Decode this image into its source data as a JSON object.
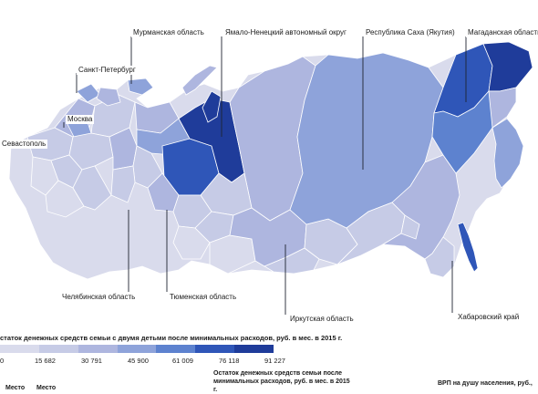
{
  "colors": {
    "ocean": "#ffffff",
    "base": "#d9dbec",
    "c1": "#c6cbe6",
    "c2": "#aeb6df",
    "c3": "#8ea3da",
    "c4": "#5d82cf",
    "c5": "#2f56b8",
    "c6": "#1f3c9a",
    "border": "#ffffff"
  },
  "labels": {
    "murmansk": "Мурманская область",
    "yamalo": "Ямало-Ненецкий автономный округ",
    "sakha": "Республика Саха (Якутия)",
    "magadan": "Магаданская область",
    "spb": "Санкт-Петербург",
    "moscow": "Москва",
    "sevastopol": "Севастополь",
    "chelyabinsk": "Челябинская область",
    "tyumen": "Тюменская область",
    "irkutsk": "Иркутская область",
    "khabarovsk": "Хабаровский край"
  },
  "legend": {
    "title": "статок денежных средств семьи с двумя детьми после минимальных расходов, руб. в мес. в 2015 г.",
    "ticks": [
      "0",
      "15 682",
      "30 791",
      "45 900",
      "61 009",
      "76 118",
      "91 227"
    ],
    "scale_colors": [
      "#d9dbec",
      "#c6cbe6",
      "#aeb6df",
      "#8ea3da",
      "#5d82cf",
      "#2f56b8",
      "#1f3c9a"
    ]
  },
  "table": {
    "col1": "Место",
    "col2": "Место",
    "col3": "Остаток денежных средств семьи после минимальных расходов, руб. в мес. в 2015 г.",
    "col4": "ВРП на душу населения, руб.,"
  }
}
